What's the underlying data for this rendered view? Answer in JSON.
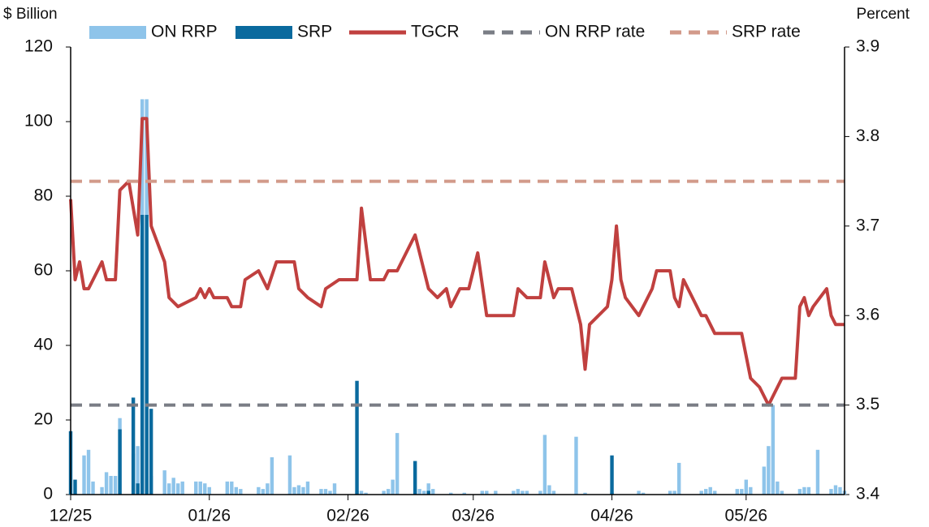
{
  "chart_data": {
    "type": "bar",
    "y_label": "$ Billion",
    "y2_label": "Percent",
    "xlim": [
      0,
      173
    ],
    "xticks": [
      {
        "value": 0,
        "label": "12/25"
      },
      {
        "value": 31,
        "label": "01/26"
      },
      {
        "value": 62,
        "label": "02/26"
      },
      {
        "value": 90,
        "label": "03/26"
      },
      {
        "value": 121,
        "label": "04/26"
      },
      {
        "value": 151,
        "label": "05/26"
      }
    ],
    "ylim": [
      0,
      120
    ],
    "yticks": [
      0,
      20,
      40,
      60,
      80,
      100,
      120
    ],
    "y2lim": [
      3.4,
      3.9
    ],
    "y2ticks": [
      3.4,
      3.5,
      3.6,
      3.7,
      3.8,
      3.9
    ],
    "legend": "top",
    "series": [
      {
        "name": "ON RRP",
        "type": "bar",
        "color": "#8ec4ea",
        "x": [
          0,
          1,
          3,
          4,
          5,
          7,
          8,
          9,
          10,
          11,
          14,
          15,
          16,
          17,
          18,
          21,
          22,
          23,
          24,
          25,
          28,
          29,
          30,
          31,
          35,
          36,
          37,
          38,
          42,
          43,
          44,
          45,
          49,
          50,
          51,
          52,
          53,
          56,
          57,
          58,
          59,
          64,
          65,
          66,
          70,
          71,
          72,
          73,
          77,
          78,
          79,
          80,
          81,
          85,
          88,
          92,
          93,
          95,
          99,
          100,
          101,
          102,
          105,
          106,
          107,
          108,
          113,
          115,
          121,
          127,
          128,
          134,
          135,
          136,
          141,
          142,
          143,
          144,
          149,
          150,
          151,
          152,
          155,
          156,
          157,
          158,
          159,
          163,
          164,
          165,
          167,
          170,
          171,
          172,
          173
        ],
        "values": [
          0,
          0,
          10.5,
          12,
          3.5,
          2,
          6,
          5,
          5,
          20.5,
          11,
          13,
          106,
          106,
          5,
          6.5,
          3,
          4.5,
          3,
          3.5,
          3.5,
          3.5,
          3,
          2,
          3.5,
          3.5,
          2,
          1.5,
          2,
          1.5,
          3,
          10,
          10.5,
          2,
          2.5,
          2,
          3.5,
          1.5,
          1.5,
          1,
          3,
          1,
          1,
          0.5,
          1,
          1.5,
          4,
          16.5,
          1,
          1.5,
          1,
          3,
          1.5,
          0.5,
          0.5,
          1,
          1,
          1,
          1,
          1.5,
          1,
          1,
          1,
          16,
          2.5,
          1,
          15.5,
          0.5,
          0.5,
          1,
          0.5,
          1,
          1,
          8.5,
          1,
          1.5,
          2,
          1,
          1.5,
          1.5,
          4,
          2,
          7.5,
          13,
          24,
          3.5,
          1,
          1.5,
          2,
          2,
          12,
          1.5,
          2.5,
          2,
          1
        ]
      },
      {
        "name": "SRP",
        "type": "bar",
        "color": "#0a6a9e",
        "x": [
          0,
          1,
          3,
          4,
          5,
          7,
          8,
          9,
          10,
          11,
          14,
          15,
          16,
          17,
          18,
          21,
          22,
          23,
          24,
          25,
          28,
          29,
          30,
          31,
          35,
          36,
          37,
          38,
          42,
          43,
          44,
          45,
          49,
          50,
          51,
          52,
          53,
          56,
          57,
          58,
          59,
          64,
          65,
          66,
          70,
          71,
          72,
          73,
          77,
          78,
          79,
          80,
          81,
          85,
          88,
          92,
          93,
          95,
          99,
          100,
          101,
          102,
          105,
          106,
          107,
          108,
          113,
          115,
          121,
          127,
          128,
          134,
          135,
          136,
          141,
          142,
          143,
          144,
          149,
          150,
          151,
          152,
          155,
          156,
          157,
          158,
          159,
          163,
          164,
          165,
          167,
          170,
          171,
          172,
          173
        ],
        "values": [
          17,
          4,
          0,
          0,
          0,
          0,
          0,
          0,
          0,
          17.5,
          26,
          3,
          75,
          75,
          23,
          0,
          0,
          0,
          0,
          0,
          0,
          0,
          0,
          0,
          0,
          0,
          0,
          0,
          0,
          0,
          0,
          0,
          0,
          0,
          0,
          0,
          0,
          0,
          0,
          0,
          0,
          30.5,
          0,
          0,
          0,
          0,
          0,
          0,
          9,
          0,
          0,
          1,
          0,
          0,
          0,
          0,
          0,
          0,
          0,
          0,
          0,
          0,
          0,
          0,
          0,
          0,
          0,
          0,
          10.5,
          0,
          0,
          0,
          0,
          0,
          0,
          0,
          0,
          0,
          0,
          0,
          0,
          0,
          0,
          0,
          0,
          0,
          0,
          0,
          0,
          0,
          0,
          0,
          0,
          0,
          0
        ]
      },
      {
        "name": "TGCR",
        "type": "line",
        "axis": "y2",
        "color": "#c0403f",
        "x": [
          0,
          1,
          2,
          3,
          4,
          7,
          8,
          10,
          11,
          13,
          15,
          16,
          17,
          18,
          21,
          22,
          24,
          28,
          29,
          30,
          31,
          32,
          35,
          36,
          38,
          39,
          42,
          44,
          46,
          50,
          51,
          53,
          56,
          57,
          60,
          64,
          65,
          67,
          70,
          71,
          73,
          77,
          80,
          82,
          84,
          85,
          87,
          89,
          91,
          93,
          99,
          100,
          102,
          105,
          106,
          108,
          109,
          112,
          114,
          115,
          116,
          120,
          121,
          122,
          123,
          124,
          127,
          130,
          131,
          134,
          135,
          136,
          137,
          139,
          141,
          142,
          144,
          150,
          152,
          154,
          156,
          159,
          162,
          163,
          164,
          165,
          166,
          169,
          170,
          171,
          173
        ],
        "values": [
          3.73,
          3.64,
          3.66,
          3.63,
          3.63,
          3.66,
          3.64,
          3.64,
          3.74,
          3.75,
          3.69,
          3.82,
          3.82,
          3.7,
          3.66,
          3.62,
          3.61,
          3.62,
          3.63,
          3.62,
          3.63,
          3.62,
          3.62,
          3.61,
          3.61,
          3.64,
          3.65,
          3.63,
          3.66,
          3.66,
          3.63,
          3.62,
          3.61,
          3.63,
          3.64,
          3.64,
          3.72,
          3.64,
          3.64,
          3.65,
          3.65,
          3.69,
          3.63,
          3.62,
          3.63,
          3.61,
          3.63,
          3.63,
          3.67,
          3.6,
          3.6,
          3.63,
          3.62,
          3.62,
          3.66,
          3.62,
          3.63,
          3.63,
          3.59,
          3.54,
          3.59,
          3.61,
          3.64,
          3.7,
          3.64,
          3.62,
          3.6,
          3.63,
          3.65,
          3.65,
          3.62,
          3.61,
          3.64,
          3.62,
          3.6,
          3.6,
          3.58,
          3.58,
          3.53,
          3.52,
          3.5,
          3.53,
          3.53,
          3.61,
          3.62,
          3.6,
          3.61,
          3.63,
          3.6,
          3.59,
          3.59
        ]
      },
      {
        "name": "ON RRP rate",
        "type": "line",
        "axis": "y2",
        "dash": true,
        "color": "#7a7d85",
        "x": [
          0,
          173
        ],
        "values": [
          3.5,
          3.5
        ]
      },
      {
        "name": "SRP rate",
        "type": "line",
        "axis": "y2",
        "dash": true,
        "color": "#d29a8a",
        "x": [
          0,
          173
        ],
        "values": [
          3.75,
          3.75
        ]
      }
    ]
  }
}
